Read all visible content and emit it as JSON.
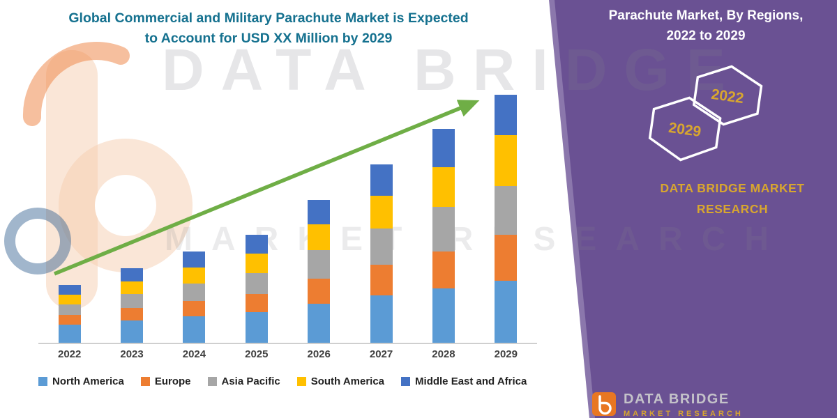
{
  "chart": {
    "title_line1": "Global Commercial and Military Parachute Market is Expected",
    "title_line2": "to Account for USD XX Million by 2029",
    "title_color": "#15718F"
  },
  "chart_data": {
    "type": "bar",
    "stacked": true,
    "title": "Global Commercial and Military Parachute Market is Expected to Account for USD XX Million by 2029",
    "xlabel": "",
    "ylabel": "",
    "y_axis_visible": false,
    "grid": false,
    "legend_position": "bottom",
    "categories": [
      "2022",
      "2023",
      "2024",
      "2025",
      "2026",
      "2027",
      "2028",
      "2029"
    ],
    "unit": "relative index (no y-axis shown in figure)",
    "series": [
      {
        "name": "North America",
        "color": "#5B9BD5",
        "values": [
          2.6,
          3.2,
          3.8,
          4.4,
          5.6,
          6.8,
          7.8,
          8.9
        ]
      },
      {
        "name": "Europe",
        "color": "#ED7D31",
        "values": [
          1.4,
          1.8,
          2.2,
          2.6,
          3.6,
          4.4,
          5.3,
          6.6
        ]
      },
      {
        "name": "Asia Pacific",
        "color": "#A6A6A6",
        "values": [
          1.5,
          2.0,
          2.5,
          3.0,
          4.1,
          5.2,
          6.4,
          7.0
        ]
      },
      {
        "name": "South America",
        "color": "#FFC000",
        "values": [
          1.4,
          1.8,
          2.3,
          2.8,
          3.7,
          4.7,
          5.7,
          7.3
        ]
      },
      {
        "name": "Middle East and Africa",
        "color": "#4472C4",
        "values": [
          1.4,
          1.9,
          2.3,
          2.7,
          3.5,
          4.5,
          5.5,
          5.8
        ]
      }
    ],
    "totals": [
      8.3,
      10.7,
      13.1,
      15.5,
      20.5,
      25.6,
      30.7,
      35.6
    ],
    "annotations": [
      {
        "type": "trend-arrow",
        "direction": "up-right",
        "color": "#6FAE46"
      }
    ]
  },
  "side_panel": {
    "background": "#6A5193",
    "accent_gold": "#D8A62F",
    "title_line1": "Parachute Market, By Regions,",
    "title_line2": "2022 to 2029",
    "hexagons": [
      {
        "label": "2029"
      },
      {
        "label": "2022"
      }
    ],
    "brand_line1": "DATA BRIDGE MARKET",
    "brand_line2": "RESEARCH"
  },
  "watermark": {
    "line1": "DATA BRIDGE",
    "line2": "MARKET RESEARCH"
  },
  "footer_logo": {
    "name": "DATA BRIDGE",
    "sub": "MARKET RESEARCH"
  }
}
